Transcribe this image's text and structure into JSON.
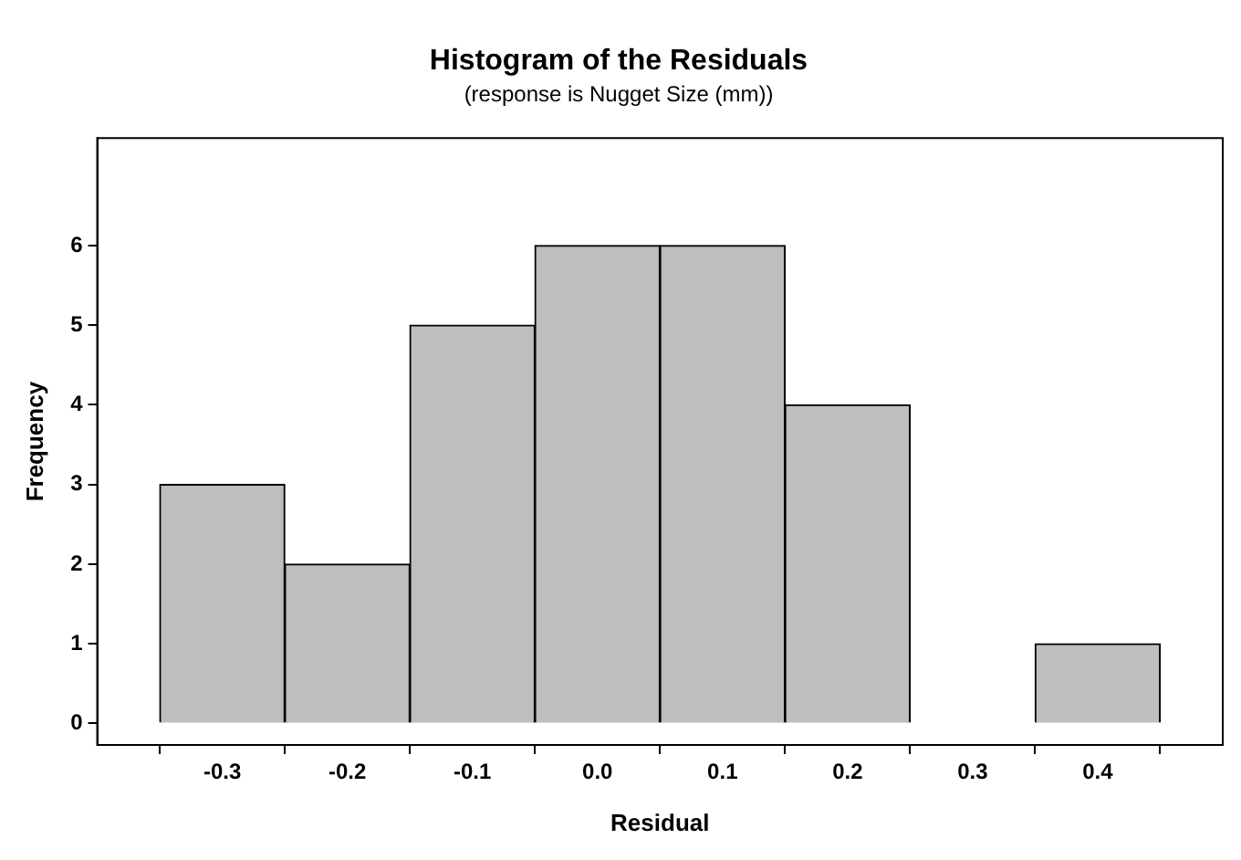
{
  "chart_data": {
    "type": "histogram",
    "title": "Histogram of the Residuals",
    "subtitle": "(response is Nugget Size (mm))",
    "xlabel": "Residual",
    "ylabel": "Frequency",
    "bins": [
      -0.35,
      -0.25,
      -0.15,
      -0.05,
      0.05,
      0.15,
      0.25,
      0.35,
      0.45
    ],
    "values": [
      3,
      2,
      5,
      6,
      6,
      4,
      0,
      1
    ],
    "color": "#bebebe",
    "xlim": [
      -0.4,
      0.5
    ],
    "xticks": [
      -0.3,
      -0.2,
      -0.1,
      {
        "value": 0,
        "label": "0.0"
      },
      0.1,
      0.2,
      0.3,
      0.4
    ],
    "ylim": [
      -0.27,
      7.35
    ],
    "yticks": [
      0,
      1,
      2,
      3,
      4,
      5,
      6
    ]
  }
}
